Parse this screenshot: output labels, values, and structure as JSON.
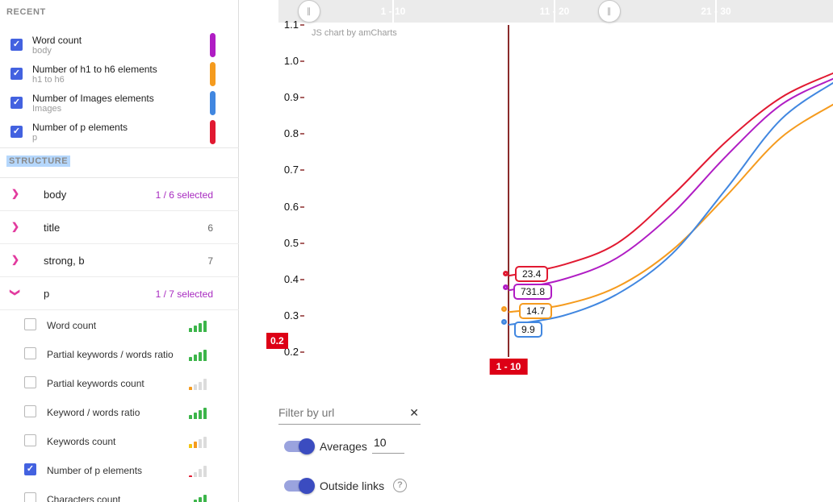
{
  "icons": {
    "check": "✓",
    "chevron": "❯",
    "clear": "✕",
    "help": "?",
    "handle": "∥"
  },
  "sidebar": {
    "recent": {
      "title": "RECENT",
      "items": [
        {
          "label": "Word count",
          "sublabel": "body",
          "color": "#b01dc4",
          "checked": true
        },
        {
          "label": "Number of h1 to h6 elements",
          "sublabel": "h1 to h6",
          "color": "#f59b1e",
          "checked": true
        },
        {
          "label": "Number of Images elements",
          "sublabel": "Images",
          "color": "#4187e0",
          "checked": true
        },
        {
          "label": "Number of p elements",
          "sublabel": "p",
          "color": "#e11931",
          "checked": true
        }
      ]
    },
    "structure": {
      "title": "STRUCTURE",
      "rows": [
        {
          "label": "body",
          "count": "1 / 6 selected",
          "highlight": true,
          "expanded": false
        },
        {
          "label": "title",
          "count": "6",
          "highlight": false,
          "expanded": false
        },
        {
          "label": "strong, b",
          "count": "7",
          "highlight": false,
          "expanded": false
        },
        {
          "label": "p",
          "count": "1 / 7 selected",
          "highlight": true,
          "expanded": true
        }
      ],
      "p_children": [
        {
          "label": "Word count",
          "checked": false,
          "chart": {
            "heights": [
              5,
              8,
              11,
              14
            ],
            "colors": [
              "#3cb54a",
              "#3cb54a",
              "#3cb54a",
              "#3cb54a"
            ]
          }
        },
        {
          "label": "Partial keywords / words ratio",
          "checked": false,
          "chart": {
            "heights": [
              5,
              8,
              11,
              14
            ],
            "colors": [
              "#3cb54a",
              "#3cb54a",
              "#3cb54a",
              "#3cb54a"
            ]
          }
        },
        {
          "label": "Partial keywords count",
          "checked": false,
          "chart": {
            "heights": [
              4,
              7,
              10,
              14
            ],
            "colors": [
              "#f59b1e",
              "#dcdcdc",
              "#dcdcdc",
              "#dcdcdc"
            ]
          }
        },
        {
          "label": "Keyword / words ratio",
          "checked": false,
          "chart": {
            "heights": [
              5,
              8,
              11,
              14
            ],
            "colors": [
              "#3cb54a",
              "#3cb54a",
              "#3cb54a",
              "#3cb54a"
            ]
          }
        },
        {
          "label": "Keywords count",
          "checked": false,
          "chart": {
            "heights": [
              5,
              8,
              11,
              14
            ],
            "colors": [
              "#f2c511",
              "#f59b1e",
              "#dcdcdc",
              "#dcdcdc"
            ]
          }
        },
        {
          "label": "Number of p elements",
          "checked": true,
          "chart": {
            "heights": [
              2,
              6,
              10,
              14
            ],
            "colors": [
              "#e11931",
              "#dcdcdc",
              "#dcdcdc",
              "#dcdcdc"
            ]
          }
        },
        {
          "label": "Characters count",
          "checked": false,
          "chart": {
            "heights": [
              5,
              8,
              11,
              14
            ],
            "colors": [
              "#3cb54a",
              "#3cb54a",
              "#3cb54a",
              "#3cb54a"
            ]
          }
        }
      ]
    }
  },
  "selector": {
    "labels": [
      "1 - 10",
      "11 - 20",
      "21 - 30"
    ]
  },
  "chart": {
    "attribution": "JS chart by amCharts",
    "cursor_value_badge": "0.2",
    "cursor_category_badge": "1 - 10",
    "balloons": [
      {
        "value": "23.4",
        "color": "#e11931"
      },
      {
        "value": "731.8",
        "color": "#b01dc4"
      },
      {
        "value": "14.7",
        "color": "#f59b1e"
      },
      {
        "value": "9.9",
        "color": "#4187e0"
      }
    ]
  },
  "chart_data": {
    "type": "line",
    "x_visible_categories": [
      "1 - 10",
      "11 - 20",
      "21 - 30"
    ],
    "y_axis": {
      "min": 0.2,
      "max": 1.1,
      "tick_labels": [
        "1.1",
        "1.0",
        "0.9",
        "0.8",
        "0.7",
        "0.6",
        "0.5",
        "0.4",
        "0.3",
        "0.2"
      ]
    },
    "cursor": {
      "category": "1 - 10",
      "axis_value": "0.2"
    },
    "legend_position": "none",
    "grid": false,
    "series": [
      {
        "name": "Number of p elements",
        "color": "#e11931",
        "value_at_cursor": 23.4,
        "curve": [
          0.41,
          0.44,
          0.5,
          0.63,
          0.78,
          0.9,
          0.97
        ]
      },
      {
        "name": "Word count (body)",
        "color": "#b01dc4",
        "value_at_cursor": 731.8,
        "curve": [
          0.37,
          0.4,
          0.46,
          0.58,
          0.74,
          0.88,
          0.955
        ]
      },
      {
        "name": "Number of h1 to h6 elements",
        "color": "#f59b1e",
        "value_at_cursor": 14.7,
        "curve": [
          0.31,
          0.33,
          0.38,
          0.48,
          0.63,
          0.79,
          0.885
        ]
      },
      {
        "name": "Number of Images elements",
        "color": "#4187e0",
        "value_at_cursor": 9.9,
        "curve": [
          0.275,
          0.3,
          0.36,
          0.47,
          0.65,
          0.84,
          0.945
        ]
      }
    ]
  },
  "controls": {
    "filter": {
      "placeholder": "Filter by url",
      "value": ""
    },
    "averages": {
      "label": "Averages",
      "value": "10",
      "enabled": true
    },
    "outside_links": {
      "label": "Outside links",
      "enabled": true
    }
  }
}
